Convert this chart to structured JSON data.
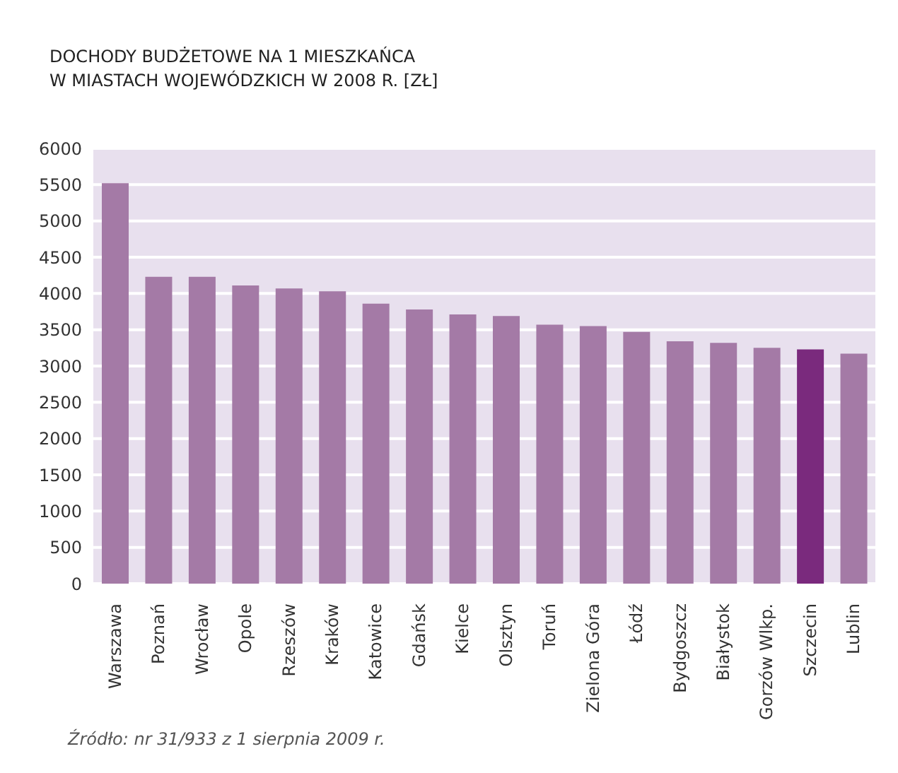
{
  "chart_data": {
    "type": "bar",
    "title": "DOCHODY BUDŻETOWE NA 1 MIESZKAŃCA\nW MIASTACH WOJEWÓDZKICH W 2008 R. [ZŁ]",
    "categories": [
      "Warszawa",
      "Poznań",
      "Wrocław",
      "Opole",
      "Rzeszów",
      "Kraków",
      "Katowice",
      "Gdańsk",
      "Kielce",
      "Olsztyn",
      "Toruń",
      "Zielona Góra",
      "Łódź",
      "Bydgoszcz",
      "Białystok",
      "Gorzów Wlkp.",
      "Szczecin",
      "Lublin"
    ],
    "values": [
      5520,
      4230,
      4230,
      4110,
      4070,
      4030,
      3860,
      3780,
      3710,
      3690,
      3570,
      3550,
      3470,
      3340,
      3320,
      3250,
      3230,
      3170
    ],
    "colors": [
      "#a47aa6",
      "#a47aa6",
      "#a47aa6",
      "#a47aa6",
      "#a47aa6",
      "#a47aa6",
      "#a47aa6",
      "#a47aa6",
      "#a47aa6",
      "#a47aa6",
      "#a47aa6",
      "#a47aa6",
      "#a47aa6",
      "#a47aa6",
      "#a47aa6",
      "#a47aa6",
      "#7a2a7d",
      "#a47aa6"
    ],
    "ylim": [
      0,
      6000
    ],
    "yticks": [
      0,
      500,
      1000,
      1500,
      2000,
      2500,
      3000,
      3500,
      4000,
      4500,
      5000,
      5500,
      6000
    ],
    "grid": "y",
    "annotations": [
      "Źródło: nr 31/933 z 1 sierpnia 2009 r."
    ]
  }
}
